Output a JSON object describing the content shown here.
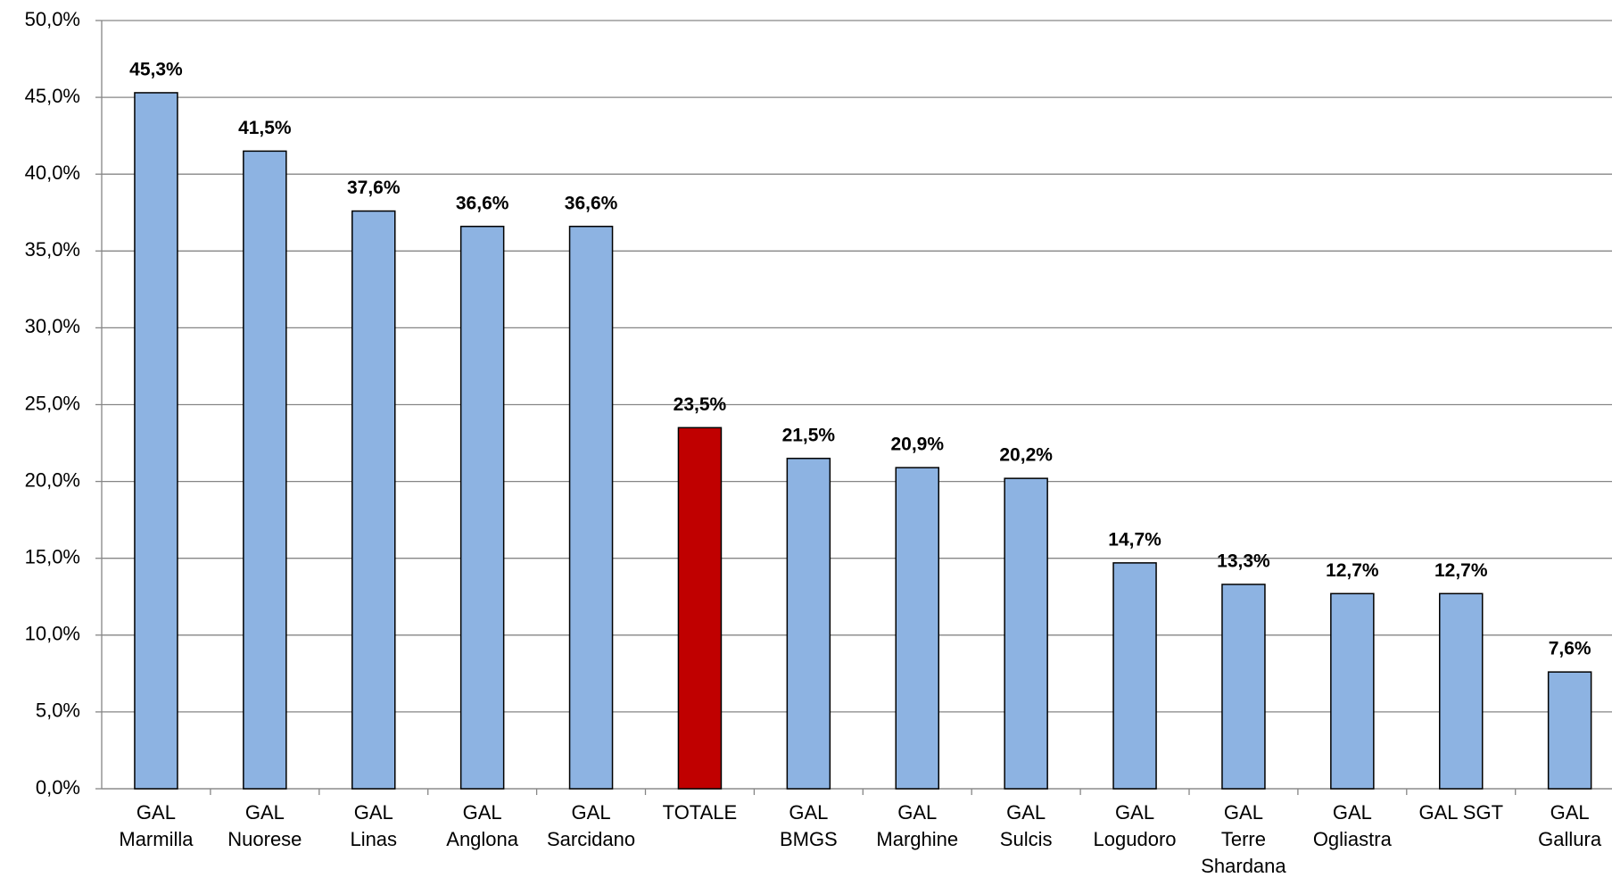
{
  "chart_data": {
    "type": "bar",
    "categories": [
      "GAL\nMarmilla",
      "GAL\nNuorese",
      "GAL\nLinas",
      "GAL\nAnglona",
      "GAL\nSarcidano",
      "TOTALE",
      "GAL\nBMGS",
      "GAL\nMarghine",
      "GAL\nSulcis",
      "GAL\nLogudoro",
      "GAL\nTerre\nShardana",
      "GAL\nOgliastra",
      "GAL SGT",
      "GAL\nGallura"
    ],
    "values": [
      45.3,
      41.5,
      37.6,
      36.6,
      36.6,
      23.5,
      21.5,
      20.9,
      20.2,
      14.7,
      13.3,
      12.7,
      12.7,
      7.6
    ],
    "value_labels": [
      "45,3%",
      "41,5%",
      "37,6%",
      "36,6%",
      "36,6%",
      "23,5%",
      "21,5%",
      "20,9%",
      "20,2%",
      "14,7%",
      "13,3%",
      "12,7%",
      "12,7%",
      "7,6%"
    ],
    "colors": [
      "#8db3e2",
      "#8db3e2",
      "#8db3e2",
      "#8db3e2",
      "#8db3e2",
      "#c00000",
      "#8db3e2",
      "#8db3e2",
      "#8db3e2",
      "#8db3e2",
      "#8db3e2",
      "#8db3e2",
      "#8db3e2",
      "#8db3e2"
    ],
    "ylim": [
      0,
      50
    ],
    "yticks": [
      {
        "value": 0,
        "label": "0,0%"
      },
      {
        "value": 5,
        "label": "5,0%"
      },
      {
        "value": 10,
        "label": "10,0%"
      },
      {
        "value": 15,
        "label": "15,0%"
      },
      {
        "value": 20,
        "label": "20,0%"
      },
      {
        "value": 25,
        "label": "25,0%"
      },
      {
        "value": 30,
        "label": "30,0%"
      },
      {
        "value": 35,
        "label": "35,0%"
      },
      {
        "value": 40,
        "label": "40,0%"
      },
      {
        "value": 45,
        "label": "45,0%"
      },
      {
        "value": 50,
        "label": "50,0%"
      }
    ],
    "grid": true
  }
}
